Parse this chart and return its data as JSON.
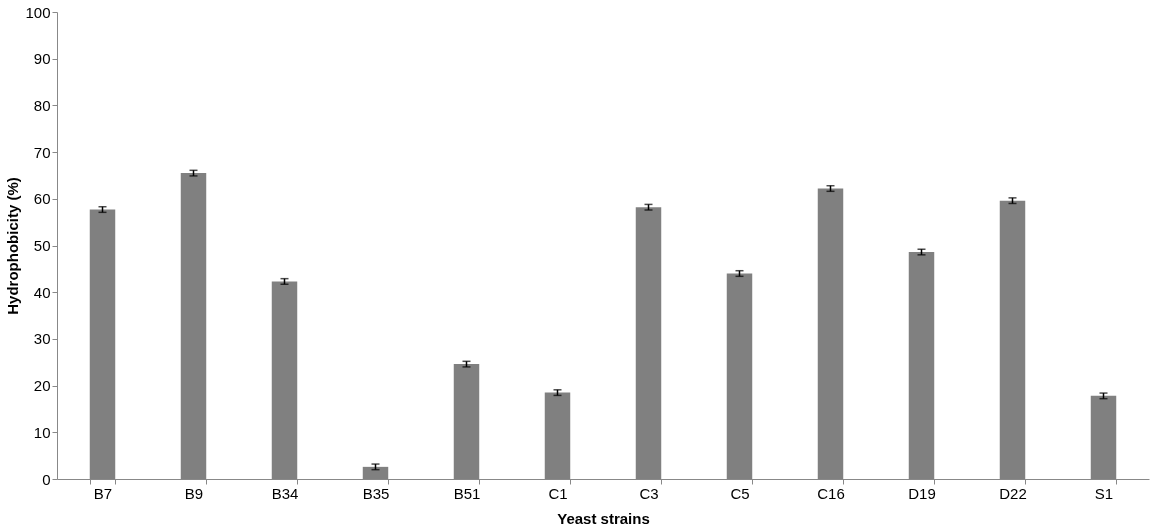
{
  "chart_data": {
    "type": "bar",
    "xlabel": "Yeast strains",
    "ylabel": "Hydrophobicity (%)",
    "categories": [
      "B7",
      "B9",
      "B34",
      "B35",
      "B51",
      "C1",
      "C3",
      "C5",
      "C16",
      "D19",
      "D22",
      "S1"
    ],
    "series": [
      {
        "color": "#808080",
        "values": [
          57.7,
          65.5,
          42.3,
          2.6,
          24.6,
          18.5,
          58.2,
          44.0,
          62.2,
          48.6,
          59.6,
          17.8
        ],
        "errors": [
          0.6,
          0.6,
          0.6,
          0.6,
          0.6,
          0.6,
          0.6,
          0.6,
          0.6,
          0.6,
          0.6,
          0.6
        ]
      }
    ],
    "ylim": [
      0,
      100
    ],
    "yticks": [
      0,
      10,
      20,
      30,
      40,
      50,
      60,
      70,
      80,
      90,
      100
    ],
    "grid": false
  }
}
